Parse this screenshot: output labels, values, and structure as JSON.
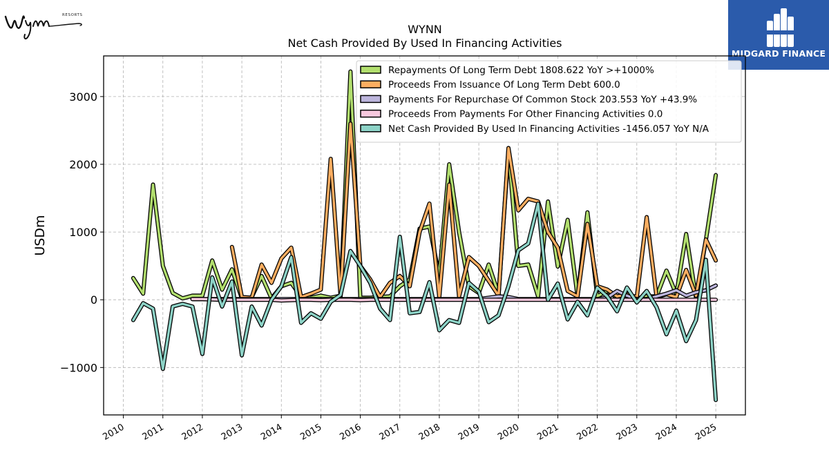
{
  "logos": {
    "left_wordmark": "Wynn",
    "left_sub": "RESORTS",
    "right_brand": "MIDGARD FINANCE"
  },
  "colors": {
    "repayments": "#b2df6e",
    "proceeds_issuance": "#fdae61",
    "repurchase": "#bcb5dc",
    "other_financing": "#f7c8de",
    "net_cash": "#8dd3c7",
    "brand_blue": "#2b5bab"
  },
  "chart_data": {
    "type": "line",
    "title": "WYNN",
    "subtitle": "Net Cash Provided By Used In Financing Activities",
    "ylabel": "USDm",
    "xlabel": "",
    "ylim": [
      -1700,
      3600
    ],
    "xlim": [
      2009.5,
      2025.75
    ],
    "yticks": [
      -1000,
      0,
      1000,
      2000,
      3000
    ],
    "ytick_labels": [
      "−1000",
      "0",
      "1000",
      "2000",
      "3000"
    ],
    "xticks": [
      2010,
      2011,
      2012,
      2013,
      2014,
      2015,
      2016,
      2017,
      2018,
      2019,
      2020,
      2021,
      2022,
      2023,
      2024,
      2025
    ],
    "xtick_labels": [
      "2010",
      "2011",
      "2012",
      "2013",
      "2014",
      "2015",
      "2016",
      "2017",
      "2018",
      "2019",
      "2020",
      "2021",
      "2022",
      "2023",
      "2024",
      "2025"
    ],
    "grid": true,
    "legend_position": "top-right",
    "series": [
      {
        "key": "repayments",
        "name": "Repayments Of Long Term Debt",
        "legend": "Repayments Of Long Term Debt  1808.622 YoY >+1000%",
        "color": "#b2df6e",
        "points": [
          [
            2010.25,
            320
          ],
          [
            2010.5,
            90
          ],
          [
            2010.75,
            1700
          ],
          [
            2011.0,
            500
          ],
          [
            2011.25,
            100
          ],
          [
            2011.5,
            20
          ],
          [
            2011.75,
            60
          ],
          [
            2012.0,
            60
          ],
          [
            2012.25,
            580
          ],
          [
            2012.5,
            150
          ],
          [
            2012.75,
            450
          ],
          [
            2013.0,
            20
          ],
          [
            2013.25,
            40
          ],
          [
            2013.5,
            350
          ],
          [
            2013.75,
            20
          ],
          [
            2014.0,
            200
          ],
          [
            2014.25,
            250
          ],
          [
            2014.5,
            40
          ],
          [
            2014.75,
            30
          ],
          [
            2015.0,
            60
          ],
          [
            2015.25,
            30
          ],
          [
            2015.5,
            60
          ],
          [
            2015.75,
            3370
          ],
          [
            2016.0,
            30
          ],
          [
            2016.25,
            30
          ],
          [
            2016.5,
            40
          ],
          [
            2016.75,
            50
          ],
          [
            2017.0,
            200
          ],
          [
            2017.25,
            300
          ],
          [
            2017.5,
            1050
          ],
          [
            2017.75,
            1080
          ],
          [
            2018.0,
            350
          ],
          [
            2018.25,
            2000
          ],
          [
            2018.5,
            1000
          ],
          [
            2018.75,
            200
          ],
          [
            2019.0,
            100
          ],
          [
            2019.25,
            520
          ],
          [
            2019.5,
            80
          ],
          [
            2019.75,
            2200
          ],
          [
            2020.0,
            500
          ],
          [
            2020.25,
            520
          ],
          [
            2020.5,
            50
          ],
          [
            2020.75,
            1450
          ],
          [
            2021.0,
            490
          ],
          [
            2021.25,
            1180
          ],
          [
            2021.5,
            50
          ],
          [
            2021.75,
            1290
          ],
          [
            2022.0,
            50
          ],
          [
            2022.25,
            130
          ],
          [
            2022.5,
            30
          ],
          [
            2022.75,
            60
          ],
          [
            2023.0,
            20
          ],
          [
            2023.25,
            50
          ],
          [
            2023.5,
            50
          ],
          [
            2023.75,
            430
          ],
          [
            2024.0,
            80
          ],
          [
            2024.25,
            970
          ],
          [
            2024.5,
            30
          ],
          [
            2024.75,
            880
          ],
          [
            2025.0,
            1840
          ]
        ]
      },
      {
        "key": "proceeds_issuance",
        "name": "Proceeds From Issuance Of Long Term Debt",
        "legend": "Proceeds From Issuance Of Long Term Debt  600.0",
        "color": "#fdae61",
        "points": [
          [
            2012.75,
            780
          ],
          [
            2013.0,
            40
          ],
          [
            2013.25,
            30
          ],
          [
            2013.5,
            520
          ],
          [
            2013.75,
            250
          ],
          [
            2014.0,
            610
          ],
          [
            2014.25,
            770
          ],
          [
            2014.5,
            40
          ],
          [
            2014.75,
            90
          ],
          [
            2015.0,
            150
          ],
          [
            2015.25,
            2080
          ],
          [
            2015.5,
            50
          ],
          [
            2015.75,
            2600
          ],
          [
            2016.0,
            500
          ],
          [
            2016.25,
            300
          ],
          [
            2016.5,
            40
          ],
          [
            2016.75,
            250
          ],
          [
            2017.0,
            350
          ],
          [
            2017.25,
            200
          ],
          [
            2017.5,
            1000
          ],
          [
            2017.75,
            1420
          ],
          [
            2018.0,
            40
          ],
          [
            2018.25,
            1700
          ],
          [
            2018.5,
            50
          ],
          [
            2018.75,
            630
          ],
          [
            2019.0,
            500
          ],
          [
            2019.25,
            280
          ],
          [
            2019.5,
            60
          ],
          [
            2019.75,
            2240
          ],
          [
            2020.0,
            1320
          ],
          [
            2020.25,
            1490
          ],
          [
            2020.5,
            1450
          ],
          [
            2020.75,
            1000
          ],
          [
            2021.0,
            770
          ],
          [
            2021.25,
            130
          ],
          [
            2021.5,
            50
          ],
          [
            2021.75,
            1120
          ],
          [
            2022.0,
            200
          ],
          [
            2022.25,
            150
          ],
          [
            2022.5,
            50
          ],
          [
            2022.75,
            80
          ],
          [
            2023.0,
            40
          ],
          [
            2023.25,
            1220
          ],
          [
            2023.5,
            40
          ],
          [
            2023.75,
            80
          ],
          [
            2024.0,
            40
          ],
          [
            2024.25,
            440
          ],
          [
            2024.5,
            60
          ],
          [
            2024.75,
            890
          ],
          [
            2025.0,
            580
          ]
        ]
      },
      {
        "key": "repurchase",
        "name": "Payments For Repurchase Of Common Stock",
        "legend": "Payments For Repurchase Of Common Stock  203.553 YoY +43.9%",
        "color": "#bcb5dc",
        "points": [
          [
            2011.75,
            10
          ],
          [
            2012.0,
            10
          ],
          [
            2012.25,
            10
          ],
          [
            2012.5,
            10
          ],
          [
            2012.75,
            10
          ],
          [
            2013.0,
            10
          ],
          [
            2013.25,
            10
          ],
          [
            2013.5,
            10
          ],
          [
            2013.75,
            10
          ],
          [
            2014.0,
            10
          ],
          [
            2014.25,
            10
          ],
          [
            2014.5,
            10
          ],
          [
            2014.75,
            10
          ],
          [
            2015.0,
            10
          ],
          [
            2015.25,
            10
          ],
          [
            2015.5,
            10
          ],
          [
            2015.75,
            10
          ],
          [
            2016.0,
            10
          ],
          [
            2016.25,
            10
          ],
          [
            2016.5,
            10
          ],
          [
            2016.75,
            10
          ],
          [
            2017.0,
            10
          ],
          [
            2017.25,
            10
          ],
          [
            2017.5,
            10
          ],
          [
            2017.75,
            10
          ],
          [
            2018.0,
            10
          ],
          [
            2018.25,
            10
          ],
          [
            2018.5,
            10
          ],
          [
            2018.75,
            10
          ],
          [
            2019.0,
            10
          ],
          [
            2019.25,
            30
          ],
          [
            2019.5,
            50
          ],
          [
            2019.75,
            40
          ],
          [
            2020.0,
            10
          ],
          [
            2020.25,
            10
          ],
          [
            2020.5,
            10
          ],
          [
            2020.75,
            10
          ],
          [
            2021.0,
            10
          ],
          [
            2021.25,
            10
          ],
          [
            2021.5,
            10
          ],
          [
            2021.75,
            10
          ],
          [
            2022.0,
            10
          ],
          [
            2022.25,
            30
          ],
          [
            2022.5,
            130
          ],
          [
            2022.75,
            60
          ],
          [
            2023.0,
            10
          ],
          [
            2023.25,
            10
          ],
          [
            2023.5,
            50
          ],
          [
            2023.75,
            90
          ],
          [
            2024.0,
            140
          ],
          [
            2024.25,
            60
          ],
          [
            2024.5,
            110
          ],
          [
            2024.75,
            140
          ],
          [
            2025.0,
            210
          ]
        ]
      },
      {
        "key": "other_financing",
        "name": "Proceeds From Payments For Other Financing Activities",
        "legend": "Proceeds From Payments For Other Financing Activities  0.0",
        "color": "#f7c8de",
        "points": [
          [
            2011.75,
            10
          ],
          [
            2012.0,
            10
          ],
          [
            2012.25,
            5
          ],
          [
            2012.5,
            0
          ],
          [
            2012.75,
            0
          ],
          [
            2013.0,
            0
          ],
          [
            2013.25,
            0
          ],
          [
            2013.5,
            0
          ],
          [
            2013.75,
            0
          ],
          [
            2014.0,
            -10
          ],
          [
            2014.25,
            -5
          ],
          [
            2014.5,
            0
          ],
          [
            2014.75,
            0
          ],
          [
            2015.0,
            -5
          ],
          [
            2015.25,
            0
          ],
          [
            2015.5,
            0
          ],
          [
            2015.75,
            0
          ],
          [
            2016.0,
            -5
          ],
          [
            2016.25,
            0
          ],
          [
            2016.5,
            0
          ],
          [
            2016.75,
            0
          ],
          [
            2017.0,
            0
          ],
          [
            2017.25,
            0
          ],
          [
            2017.5,
            0
          ],
          [
            2017.75,
            0
          ],
          [
            2018.0,
            0
          ],
          [
            2018.25,
            0
          ],
          [
            2018.5,
            0
          ],
          [
            2018.75,
            0
          ],
          [
            2019.0,
            0
          ],
          [
            2019.25,
            0
          ],
          [
            2019.5,
            0
          ],
          [
            2019.75,
            0
          ],
          [
            2020.0,
            0
          ],
          [
            2020.25,
            0
          ],
          [
            2020.5,
            0
          ],
          [
            2020.75,
            0
          ],
          [
            2021.0,
            0
          ],
          [
            2021.25,
            0
          ],
          [
            2021.5,
            0
          ],
          [
            2021.75,
            0
          ],
          [
            2022.0,
            0
          ],
          [
            2022.25,
            0
          ],
          [
            2022.5,
            0
          ],
          [
            2022.75,
            0
          ],
          [
            2023.0,
            0
          ],
          [
            2023.25,
            0
          ],
          [
            2023.5,
            0
          ],
          [
            2023.75,
            0
          ],
          [
            2024.0,
            0
          ],
          [
            2024.25,
            0
          ],
          [
            2024.5,
            0
          ],
          [
            2024.75,
            0
          ],
          [
            2025.0,
            0
          ]
        ]
      },
      {
        "key": "net_cash",
        "name": "Net Cash Provided By Used In Financing Activities",
        "legend": "Net Cash Provided By Used In Financing Activities  -1456.057 YoY N/A",
        "color": "#8dd3c7",
        "points": [
          [
            2010.25,
            -300
          ],
          [
            2010.5,
            -50
          ],
          [
            2010.75,
            -130
          ],
          [
            2011.0,
            -1020
          ],
          [
            2011.25,
            -100
          ],
          [
            2011.5,
            -60
          ],
          [
            2011.75,
            -100
          ],
          [
            2012.0,
            -800
          ],
          [
            2012.25,
            330
          ],
          [
            2012.5,
            -100
          ],
          [
            2012.75,
            270
          ],
          [
            2013.0,
            -820
          ],
          [
            2013.25,
            -100
          ],
          [
            2013.5,
            -380
          ],
          [
            2013.75,
            0
          ],
          [
            2014.0,
            200
          ],
          [
            2014.25,
            630
          ],
          [
            2014.5,
            -340
          ],
          [
            2014.75,
            -200
          ],
          [
            2015.0,
            -280
          ],
          [
            2015.25,
            -30
          ],
          [
            2015.5,
            70
          ],
          [
            2015.75,
            720
          ],
          [
            2016.0,
            500
          ],
          [
            2016.25,
            250
          ],
          [
            2016.5,
            -130
          ],
          [
            2016.75,
            -300
          ],
          [
            2017.0,
            930
          ],
          [
            2017.25,
            -200
          ],
          [
            2017.5,
            -180
          ],
          [
            2017.75,
            260
          ],
          [
            2018.0,
            -450
          ],
          [
            2018.25,
            -300
          ],
          [
            2018.5,
            -340
          ],
          [
            2018.75,
            250
          ],
          [
            2019.0,
            120
          ],
          [
            2019.25,
            -330
          ],
          [
            2019.5,
            -230
          ],
          [
            2019.75,
            200
          ],
          [
            2020.0,
            730
          ],
          [
            2020.25,
            830
          ],
          [
            2020.5,
            1420
          ],
          [
            2020.75,
            0
          ],
          [
            2021.0,
            240
          ],
          [
            2021.25,
            -290
          ],
          [
            2021.5,
            -30
          ],
          [
            2021.75,
            -230
          ],
          [
            2022.0,
            180
          ],
          [
            2022.25,
            50
          ],
          [
            2022.5,
            -170
          ],
          [
            2022.75,
            180
          ],
          [
            2023.0,
            -40
          ],
          [
            2023.25,
            130
          ],
          [
            2023.5,
            -110
          ],
          [
            2023.75,
            -510
          ],
          [
            2024.0,
            -160
          ],
          [
            2024.25,
            -610
          ],
          [
            2024.5,
            -300
          ],
          [
            2024.75,
            590
          ],
          [
            2025.0,
            -1480
          ]
        ]
      }
    ]
  }
}
